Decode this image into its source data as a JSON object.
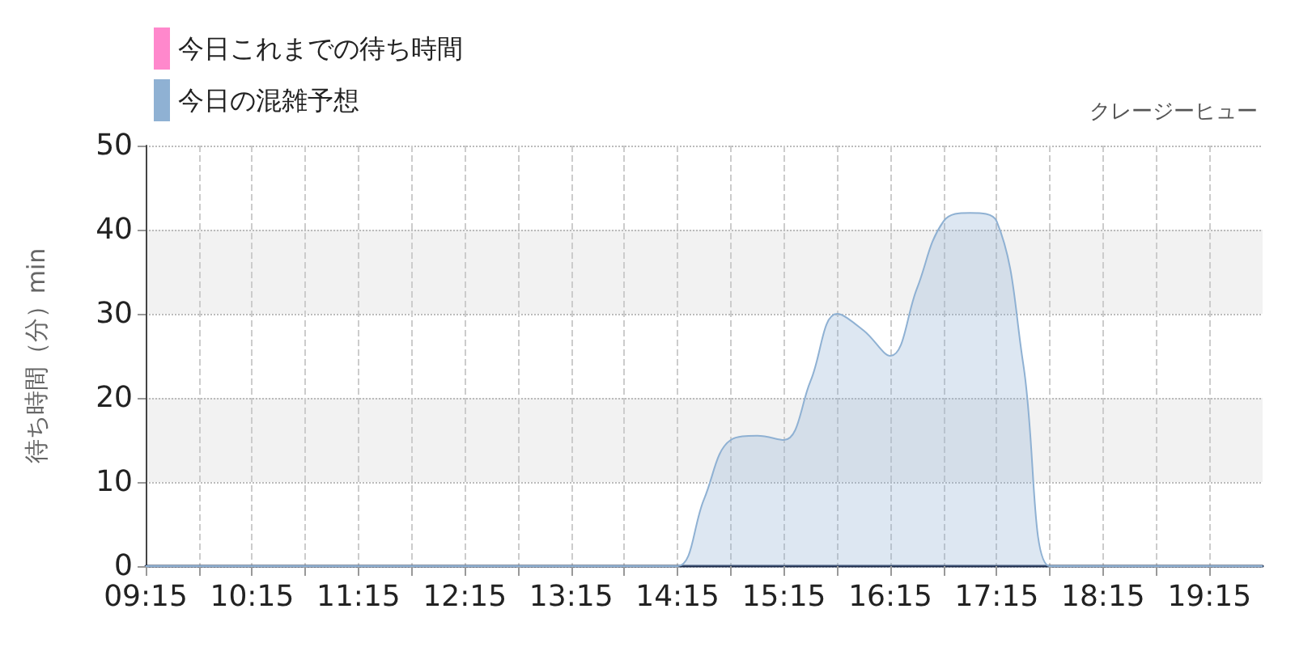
{
  "chart_data": {
    "type": "area",
    "subtitle": "クレージーヒュー",
    "ylabel": "待ち時間（分）min",
    "x": [
      9.25,
      10.25,
      11.25,
      12.25,
      13.25,
      13.75,
      14.0,
      14.25,
      14.5,
      14.75,
      15.0,
      15.25,
      15.5,
      15.75,
      16.0,
      16.25,
      16.5,
      16.75,
      17.0,
      17.25,
      17.5,
      17.75,
      18.0,
      18.25,
      19.25,
      19.75
    ],
    "series": [
      {
        "name": "今日これまでの待ち時間",
        "color": "#ff88cc",
        "values": [
          null,
          null,
          null,
          null,
          null,
          null,
          null,
          null,
          null,
          null,
          null,
          null,
          null,
          null,
          null,
          null,
          null,
          null,
          null,
          null,
          null,
          null,
          null,
          null,
          null,
          null
        ]
      },
      {
        "name": "今日の混雑予想",
        "color": "#8fb1d3",
        "values": [
          0,
          0,
          0,
          0,
          0,
          0,
          0,
          0,
          8,
          15,
          15.5,
          15,
          22,
          30,
          28,
          25,
          33,
          41,
          42,
          41,
          24,
          0,
          0,
          0,
          0,
          0
        ]
      }
    ],
    "xlim": [
      9.25,
      19.75
    ],
    "xticks": [
      {
        "value": 9.25,
        "label": "09:15"
      },
      {
        "value": 9.75,
        "label": null
      },
      {
        "value": 10.25,
        "label": "10:15"
      },
      {
        "value": 10.75,
        "label": null
      },
      {
        "value": 11.25,
        "label": "11:15"
      },
      {
        "value": 11.75,
        "label": null
      },
      {
        "value": 12.25,
        "label": "12:15"
      },
      {
        "value": 12.75,
        "label": null
      },
      {
        "value": 13.25,
        "label": "13:15"
      },
      {
        "value": 13.75,
        "label": null
      },
      {
        "value": 14.25,
        "label": "14:15"
      },
      {
        "value": 14.75,
        "label": null
      },
      {
        "value": 15.25,
        "label": "15:15"
      },
      {
        "value": 15.75,
        "label": null
      },
      {
        "value": 16.25,
        "label": "16:15"
      },
      {
        "value": 16.75,
        "label": null
      },
      {
        "value": 17.25,
        "label": "17:15"
      },
      {
        "value": 17.75,
        "label": null
      },
      {
        "value": 18.25,
        "label": "18:15"
      },
      {
        "value": 18.75,
        "label": null
      },
      {
        "value": 19.25,
        "label": "19:15"
      }
    ],
    "ylim": [
      0,
      50
    ],
    "yticks": [
      0,
      10,
      20,
      30,
      40,
      50
    ],
    "grid": true,
    "legend": "top left",
    "line_style": "solid",
    "marker": "none"
  }
}
